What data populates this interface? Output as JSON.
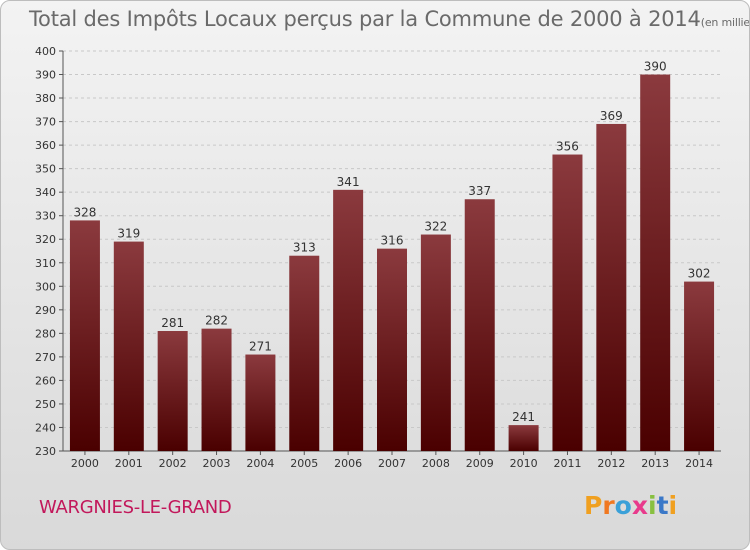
{
  "header": {
    "title": "Total des Impôts Locaux perçus par la Commune de 2000 à 2014",
    "unit": "(en milliers d'€)"
  },
  "footer": {
    "commune": "WARGNIES-LE-GRAND",
    "brand": "Proxiti",
    "brand_letters": [
      "P",
      "r",
      "o",
      "x",
      "i",
      "t",
      "i"
    ],
    "brand_colors": [
      "#f0a020",
      "#f07820",
      "#3aa0d8",
      "#e83a8c",
      "#88c040",
      "#3a78c8",
      "#f0a020"
    ]
  },
  "chart_data": {
    "type": "bar",
    "title": "Total des Impôts Locaux perçus par la Commune de 2000 à 2014",
    "unit_label": "(en milliers d'€)",
    "xlabel": "",
    "ylabel": "",
    "categories": [
      "2000",
      "2001",
      "2002",
      "2003",
      "2004",
      "2005",
      "2006",
      "2007",
      "2008",
      "2009",
      "2010",
      "2011",
      "2012",
      "2013",
      "2014"
    ],
    "values": [
      328,
      319,
      281,
      282,
      271,
      313,
      341,
      316,
      322,
      337,
      241,
      356,
      369,
      390,
      302
    ],
    "ylim": [
      230,
      400
    ],
    "yticks": [
      230,
      240,
      250,
      260,
      270,
      280,
      290,
      300,
      310,
      320,
      330,
      340,
      350,
      360,
      370,
      380,
      390,
      400
    ],
    "grid": "horizontal dashed",
    "colors": {
      "bar_top": "#8b3a3e",
      "bar_bottom": "#4a0000",
      "grid": "#c8c8c8",
      "label": "#333333"
    }
  }
}
